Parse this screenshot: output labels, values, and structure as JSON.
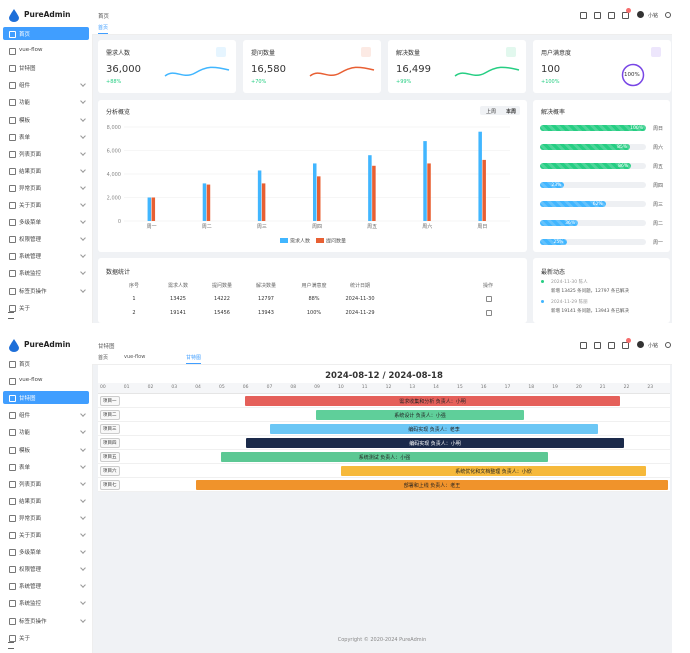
{
  "logo": "PureAdmin",
  "user": "小铭",
  "menu": [
    "首页",
    "vue-flow",
    "甘特图",
    "组件",
    "功能",
    "模板",
    "表单",
    "列表页面",
    "结果页面",
    "异常页面",
    "关于页面",
    "多级菜单",
    "权限管理",
    "系统管理",
    "系统监控",
    "标签页操作",
    "关于"
  ],
  "top": {
    "breadcrumb": "首页",
    "tabs": [
      "首页"
    ],
    "cards": [
      {
        "title": "需求人数",
        "value": "36,000",
        "change": "+88%",
        "color": "#41b6ff"
      },
      {
        "title": "提问数量",
        "value": "16,580",
        "change": "+70%",
        "color": "#e85f33"
      },
      {
        "title": "解决数量",
        "value": "16,499",
        "change": "+99%",
        "color": "#26ce83"
      },
      {
        "title": "用户满意度",
        "value": "100",
        "change": "+100%",
        "ring": "100%",
        "color": "#7846e5"
      }
    ],
    "analysis": {
      "type": "bar",
      "title": "分析概览",
      "toggle": [
        "上周",
        "本周"
      ],
      "categories": [
        "周一",
        "周二",
        "周三",
        "周四",
        "周五",
        "周六",
        "周日"
      ],
      "series": [
        {
          "name": "需求人数",
          "color": "#41b6ff",
          "values": [
            2000,
            3200,
            4300,
            4900,
            5600,
            6800,
            7600
          ]
        },
        {
          "name": "提问数量",
          "color": "#e86033",
          "values": [
            2000,
            3100,
            3200,
            3800,
            4700,
            4900,
            5200
          ]
        }
      ],
      "ylim": [
        0,
        8000
      ],
      "yticks": [
        0,
        {
          "value": 2000,
          "label": "2,000"
        },
        {
          "value": 4000,
          "label": "4,000"
        },
        {
          "value": 6000,
          "label": "6,000"
        },
        {
          "value": 8000,
          "label": "8,000"
        }
      ]
    },
    "rate": {
      "title": "解决概率",
      "items": [
        {
          "label": "周日",
          "value": 100,
          "value_label": "100%",
          "color": "#26ce83"
        },
        {
          "label": "周六",
          "value": 85,
          "value_label": "85%",
          "color": "#26ce83"
        },
        {
          "label": "周五",
          "value": 86,
          "value_label": "86%",
          "color": "#26ce83"
        },
        {
          "label": "周四",
          "value": 23,
          "value_label": "23%",
          "color": "#41b6ff"
        },
        {
          "label": "周三",
          "value": 62,
          "value_label": "62%",
          "color": "#41b6ff"
        },
        {
          "label": "周二",
          "value": 36,
          "value_label": "36%",
          "color": "#41b6ff"
        },
        {
          "label": "周一",
          "value": 25,
          "value_label": "25%",
          "color": "#41b6ff"
        }
      ]
    },
    "stats": {
      "title": "数据统计",
      "columns": [
        "序号",
        "需求人数",
        "提问数量",
        "解决数量",
        "用户满意度",
        "统计日期",
        "操作"
      ],
      "rows": [
        [
          1,
          13425,
          14222,
          12797,
          "88%",
          "2024-11-30"
        ],
        [
          2,
          19141,
          15456,
          13943,
          "100%",
          "2024-11-29"
        ]
      ]
    },
    "news": {
      "title": "最新动态",
      "items": [
        {
          "time": "2024-11-30 陈人",
          "text": "新增 13425 条问题，12797 条已解决"
        },
        {
          "time": "2024-11-29 陈丽",
          "text": "新增 19141 条问题，13943 条已解决"
        }
      ]
    }
  },
  "bottom": {
    "breadcrumb": "甘特图",
    "tabs": [
      "首页",
      "vue-flow",
      "甘特图"
    ],
    "gantt": {
      "title": "2024-08-12 / 2024-08-18",
      "hours": [
        "00",
        "01",
        "02",
        "03",
        "04",
        "05",
        "06",
        "07",
        "08",
        "09",
        "10",
        "11",
        "12",
        "13",
        "14",
        "15",
        "16",
        "17",
        "18",
        "19",
        "20",
        "21",
        "22",
        "23"
      ],
      "rows": [
        "项目一",
        "项目二",
        "项目三",
        "项目四",
        "项目五",
        "项目六",
        "项目七"
      ],
      "tasks": [
        {
          "label": "需求收集和分析 负责人：小明",
          "color": "#e5605a"
        },
        {
          "label": "系统设计 负责人：小强",
          "color": "#5fcf9a"
        },
        {
          "label": "编码实现 负责人：老李",
          "color": "#6cc7f5"
        },
        {
          "label": "编码实现 负责人：小明",
          "color": "#1b2a4a"
        },
        {
          "label": "系统测试 负责人：小强",
          "color": "#5cc894"
        },
        {
          "label": "系统优化和文档整理 负责人：小欣",
          "color": "#f6b93b"
        },
        {
          "label": "部署和上线 负责人：老王",
          "color": "#f0932b"
        }
      ]
    },
    "footer": "Copyright © 2020-2024 PureAdmin"
  }
}
